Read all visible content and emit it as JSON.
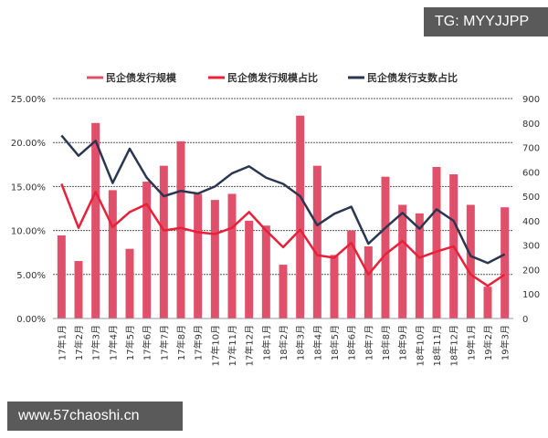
{
  "watermarks": {
    "top": "TG: MYYJJPP",
    "bottom": "www.57chaoshi.cn"
  },
  "colors": {
    "bar": "#e0506a",
    "line_scale_share": "#e8213a",
    "line_count_share": "#2b3650",
    "grid": "#555555"
  },
  "chart_data": {
    "type": "bar+line",
    "title": "",
    "legend": [
      "民企债发行规模",
      "民企债发行规模占比",
      "民企债发行支数占比"
    ],
    "legend_position": "top",
    "categories": [
      "17年1月",
      "17年2月",
      "17年3月",
      "17年4月",
      "17年5月",
      "17年6月",
      "17年7月",
      "17年8月",
      "17年9月",
      "17年10月",
      "17年11月",
      "17年12月",
      "18年1月",
      "18年2月",
      "18年3月",
      "18年4月",
      "18年5月",
      "18年6月",
      "18年7月",
      "18年8月",
      "18年9月",
      "18年10月",
      "18年11月",
      "18年12月",
      "19年1月",
      "19年2月",
      "19年3月"
    ],
    "left_axis": {
      "ticks": [
        "0.00%",
        "5.00%",
        "10.00%",
        "15.00%",
        "20.00%",
        "25.00%"
      ],
      "ylim": [
        0,
        25
      ]
    },
    "right_axis": {
      "ticks": [
        "0",
        "100",
        "200",
        "300",
        "400",
        "500",
        "600",
        "700",
        "800",
        "900"
      ],
      "ylim": [
        0,
        900
      ]
    },
    "series": [
      {
        "name": "民企债发行规模",
        "type": "bar",
        "axis": "right",
        "values": [
          340,
          235,
          800,
          525,
          285,
          560,
          625,
          725,
          510,
          485,
          510,
          400,
          380,
          220,
          830,
          625,
          260,
          360,
          295,
          580,
          465,
          430,
          620,
          590,
          465,
          130,
          455
        ]
      },
      {
        "name": "民企债发行规模占比",
        "type": "line",
        "axis": "left",
        "values": [
          15.3,
          10.3,
          14.4,
          10.4,
          12.1,
          13.0,
          10.0,
          10.3,
          9.8,
          9.6,
          10.3,
          12.1,
          10.0,
          8.1,
          10.1,
          7.2,
          6.9,
          8.6,
          5.0,
          7.3,
          8.8,
          6.9,
          7.6,
          8.2,
          5.0,
          3.7,
          5.0
        ]
      },
      {
        "name": "民企债发行支数占比",
        "type": "line",
        "axis": "left",
        "values": [
          20.8,
          18.5,
          20.2,
          15.4,
          19.3,
          16.0,
          13.9,
          14.5,
          14.2,
          15.0,
          16.5,
          17.3,
          16.0,
          15.3,
          13.9,
          10.6,
          11.9,
          12.7,
          8.5,
          10.3,
          12.0,
          10.2,
          12.4,
          11.1,
          7.1,
          6.3,
          7.3
        ]
      }
    ],
    "grid": "horizontal dashed"
  }
}
